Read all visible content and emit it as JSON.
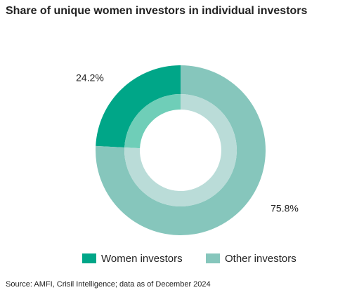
{
  "chart_data": {
    "type": "donut",
    "title": "Share of unique women investors in individual investors",
    "categories": [
      "Women investors",
      "Other investors"
    ],
    "values": [
      24.2,
      75.8
    ],
    "value_labels": [
      "24.2%",
      "75.8%"
    ],
    "colors": [
      "#00a688",
      "#86c6bc"
    ],
    "inner_colors": [
      "#6fceb8",
      "#badcd8"
    ],
    "legend": "bottom",
    "source": "Source: AMFI, Crisil Intelligence; data as of December 2024"
  }
}
